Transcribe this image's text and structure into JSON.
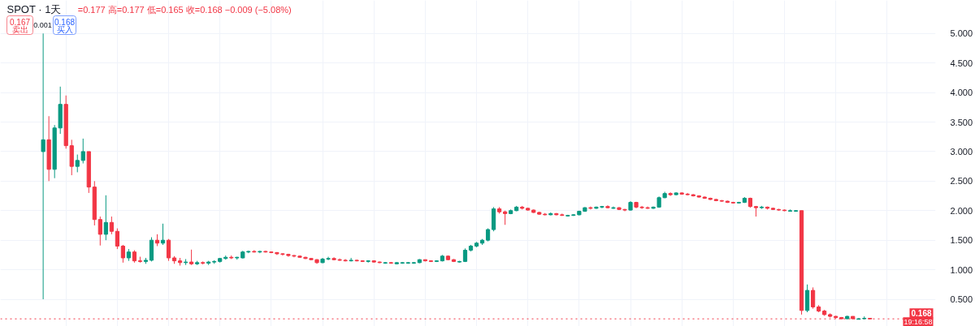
{
  "chart_data": {
    "type": "candlestick",
    "title": "SPOT · 1天",
    "subtitle": "=0.177 高=0.177 低=0.165 收=0.168 −0.009 (−5.08%)",
    "categories": [
      null,
      null,
      null,
      null,
      null,
      null,
      null,
      null,
      null,
      null,
      null,
      null,
      null,
      null,
      null,
      null,
      null,
      null,
      null,
      null,
      null,
      null,
      null,
      null,
      null,
      null,
      null,
      null,
      null,
      null,
      null,
      null,
      null,
      null,
      null,
      null,
      null,
      null,
      null,
      null,
      null,
      null,
      null,
      null,
      null,
      null,
      null,
      null,
      null,
      null,
      null,
      null,
      null,
      null,
      null,
      null,
      null,
      null,
      null,
      null,
      null,
      null,
      null,
      null,
      null,
      null,
      null,
      null,
      null,
      null,
      null,
      null,
      null,
      null,
      null,
      null,
      null,
      null,
      null,
      null,
      null,
      null,
      null,
      null,
      null,
      null,
      null,
      null,
      null,
      null,
      null,
      null,
      null,
      null,
      null,
      null,
      null,
      null,
      null,
      null,
      null,
      null,
      null,
      null,
      null,
      null,
      null,
      null,
      null,
      null,
      null,
      null,
      null,
      null,
      null,
      null,
      null,
      null,
      null,
      null,
      null,
      null,
      null,
      null,
      null,
      null,
      null,
      null,
      null,
      null,
      null,
      null,
      null,
      null,
      null,
      null,
      null,
      null,
      null,
      null,
      null,
      null,
      null,
      null,
      null,
      null,
      null,
      null,
      null,
      null,
      null,
      null,
      null,
      null,
      null,
      null,
      null,
      null,
      null,
      null,
      null,
      null,
      null,
      null
    ],
    "ohlc": [
      null,
      null,
      null,
      null,
      null,
      null,
      null,
      [
        3.0,
        5.0,
        0.5,
        3.2
      ],
      [
        3.2,
        3.6,
        2.5,
        2.7
      ],
      [
        2.7,
        3.45,
        2.55,
        3.4
      ],
      [
        3.4,
        4.1,
        3.3,
        3.8
      ],
      [
        3.8,
        3.95,
        3.05,
        3.1
      ],
      [
        3.1,
        3.2,
        2.6,
        2.75
      ],
      [
        2.75,
        2.95,
        2.65,
        2.85
      ],
      [
        2.85,
        3.22,
        2.8,
        3.0
      ],
      [
        3.0,
        3.0,
        2.3,
        2.4
      ],
      [
        2.4,
        2.5,
        1.75,
        1.85
      ],
      [
        1.85,
        1.9,
        1.41,
        1.6
      ],
      [
        1.6,
        2.26,
        1.5,
        1.8
      ],
      [
        1.8,
        1.9,
        1.6,
        1.65
      ],
      [
        1.65,
        1.7,
        1.35,
        1.4
      ],
      [
        1.4,
        1.42,
        1.12,
        1.2
      ],
      [
        1.2,
        1.35,
        1.15,
        1.3
      ],
      [
        1.3,
        1.33,
        1.12,
        1.15
      ],
      [
        1.15,
        1.22,
        1.12,
        1.14
      ],
      [
        1.14,
        1.2,
        1.1,
        1.16
      ],
      [
        1.16,
        1.55,
        1.14,
        1.5
      ],
      [
        1.5,
        1.6,
        1.4,
        1.45
      ],
      [
        1.45,
        1.78,
        1.42,
        1.5
      ],
      [
        1.5,
        1.52,
        1.15,
        1.2
      ],
      [
        1.2,
        1.23,
        1.1,
        1.15
      ],
      [
        1.15,
        1.2,
        1.07,
        1.12
      ],
      [
        1.12,
        1.18,
        1.08,
        1.13
      ],
      [
        1.13,
        1.34,
        1.08,
        1.1
      ],
      [
        1.1,
        1.15,
        1.08,
        1.12
      ],
      [
        1.12,
        1.14,
        1.09,
        1.11
      ],
      [
        1.11,
        1.15,
        1.08,
        1.13
      ],
      [
        1.13,
        1.16,
        1.1,
        1.14
      ],
      [
        1.14,
        1.2,
        1.12,
        1.19
      ],
      [
        1.19,
        1.24,
        1.17,
        1.21
      ],
      [
        1.21,
        1.24,
        1.18,
        1.2
      ],
      [
        1.2,
        1.22,
        1.17,
        1.21
      ],
      [
        1.2,
        1.32,
        1.19,
        1.3
      ],
      [
        1.3,
        1.32,
        1.28,
        1.31
      ],
      [
        1.31,
        1.33,
        1.29,
        1.3
      ],
      [
        1.3,
        1.32,
        1.28,
        1.31
      ],
      [
        1.31,
        1.32,
        1.29,
        1.3
      ],
      [
        1.3,
        1.31,
        1.28,
        1.29
      ],
      [
        1.29,
        1.3,
        1.25,
        1.27
      ],
      [
        1.27,
        1.28,
        1.24,
        1.26
      ],
      [
        1.26,
        1.27,
        1.22,
        1.24
      ],
      [
        1.24,
        1.25,
        1.21,
        1.23
      ],
      [
        1.23,
        1.24,
        1.2,
        1.21
      ],
      [
        1.21,
        1.22,
        1.18,
        1.19
      ],
      [
        1.19,
        1.2,
        1.16,
        1.17
      ],
      [
        1.17,
        1.18,
        1.1,
        1.12
      ],
      [
        1.12,
        1.2,
        1.11,
        1.18
      ],
      [
        1.18,
        1.22,
        1.16,
        1.19
      ],
      [
        1.19,
        1.21,
        1.16,
        1.17
      ],
      [
        1.17,
        1.19,
        1.15,
        1.16
      ],
      [
        1.16,
        1.18,
        1.14,
        1.15
      ],
      [
        1.15,
        1.2,
        1.14,
        1.16
      ],
      [
        1.16,
        1.17,
        1.14,
        1.15
      ],
      [
        1.15,
        1.16,
        1.13,
        1.14
      ],
      [
        1.14,
        1.16,
        1.12,
        1.15
      ],
      [
        1.15,
        1.16,
        1.12,
        1.13
      ],
      [
        1.13,
        1.14,
        1.11,
        1.12
      ],
      [
        1.11,
        1.13,
        1.1,
        1.12
      ],
      [
        1.12,
        1.13,
        1.1,
        1.11
      ],
      [
        1.1,
        1.13,
        1.09,
        1.12
      ],
      [
        1.11,
        1.13,
        1.1,
        1.12
      ],
      [
        1.11,
        1.13,
        1.1,
        1.12
      ],
      [
        1.11,
        1.13,
        1.1,
        1.12
      ],
      [
        1.12,
        1.18,
        1.11,
        1.17
      ],
      [
        1.17,
        1.17,
        1.14,
        1.15
      ],
      [
        1.15,
        1.16,
        1.13,
        1.14
      ],
      [
        1.14,
        1.16,
        1.13,
        1.15
      ],
      [
        1.15,
        1.25,
        1.14,
        1.23
      ],
      [
        1.23,
        1.24,
        1.16,
        1.17
      ],
      [
        1.17,
        1.18,
        1.13,
        1.14
      ],
      [
        1.13,
        1.15,
        1.12,
        1.14
      ],
      [
        1.14,
        1.36,
        1.13,
        1.33
      ],
      [
        1.33,
        1.42,
        1.31,
        1.4
      ],
      [
        1.4,
        1.47,
        1.38,
        1.45
      ],
      [
        1.45,
        1.52,
        1.42,
        1.5
      ],
      [
        1.5,
        1.7,
        1.48,
        1.68
      ],
      [
        1.68,
        2.06,
        1.65,
        2.03
      ],
      [
        2.03,
        2.06,
        1.95,
        1.98
      ],
      [
        1.98,
        2.0,
        1.76,
        1.95
      ],
      [
        1.95,
        2.02,
        1.94,
        2.0
      ],
      [
        2.0,
        2.08,
        1.99,
        2.06
      ],
      [
        2.06,
        2.08,
        2.02,
        2.04
      ],
      [
        2.04,
        2.05,
        2.0,
        2.01
      ],
      [
        2.01,
        2.02,
        1.96,
        1.97
      ],
      [
        1.97,
        1.98,
        1.93,
        1.94
      ],
      [
        1.94,
        1.96,
        1.92,
        1.93
      ],
      [
        1.93,
        1.97,
        1.92,
        1.95
      ],
      [
        1.95,
        1.96,
        1.92,
        1.93
      ],
      [
        1.93,
        1.95,
        1.91,
        1.92
      ],
      [
        1.91,
        1.93,
        1.9,
        1.92
      ],
      [
        1.92,
        1.94,
        1.91,
        1.93
      ],
      [
        1.93,
        2.0,
        1.92,
        1.99
      ],
      [
        1.99,
        2.06,
        1.98,
        2.05
      ],
      [
        2.05,
        2.07,
        2.02,
        2.04
      ],
      [
        2.04,
        2.07,
        2.03,
        2.06
      ],
      [
        2.06,
        2.08,
        2.04,
        2.07
      ],
      [
        2.07,
        2.09,
        2.04,
        2.05
      ],
      [
        2.04,
        2.07,
        2.03,
        2.05
      ],
      [
        2.05,
        2.06,
        2.01,
        2.02
      ],
      [
        2.02,
        2.03,
        1.99,
        2.01
      ],
      [
        2.01,
        2.16,
        2.0,
        2.14
      ],
      [
        2.14,
        2.15,
        2.04,
        2.06
      ],
      [
        2.06,
        2.08,
        2.03,
        2.05
      ],
      [
        2.05,
        2.07,
        2.03,
        2.04
      ],
      [
        2.04,
        2.07,
        2.03,
        2.06
      ],
      [
        2.06,
        2.24,
        2.05,
        2.22
      ],
      [
        2.22,
        2.32,
        2.21,
        2.29
      ],
      [
        2.29,
        2.31,
        2.25,
        2.27
      ],
      [
        2.27,
        2.31,
        2.26,
        2.3
      ],
      [
        2.3,
        2.31,
        2.27,
        2.28
      ],
      [
        2.28,
        2.3,
        2.26,
        2.27
      ],
      [
        2.27,
        2.28,
        2.24,
        2.25
      ],
      [
        2.25,
        2.26,
        2.22,
        2.23
      ],
      [
        2.23,
        2.24,
        2.2,
        2.21
      ],
      [
        2.21,
        2.22,
        2.18,
        2.19
      ],
      [
        2.19,
        2.2,
        2.16,
        2.17
      ],
      [
        2.17,
        2.18,
        2.15,
        2.16
      ],
      [
        2.16,
        2.17,
        2.13,
        2.14
      ],
      [
        2.14,
        2.15,
        2.12,
        2.13
      ],
      [
        2.13,
        2.15,
        2.12,
        2.14
      ],
      [
        2.14,
        2.23,
        2.13,
        2.21
      ],
      [
        2.21,
        2.22,
        2.05,
        2.07
      ],
      [
        2.07,
        2.08,
        1.9,
        2.05
      ],
      [
        2.05,
        2.08,
        2.03,
        2.06
      ],
      [
        2.06,
        2.07,
        2.02,
        2.04
      ],
      [
        2.04,
        2.05,
        2.01,
        2.02
      ],
      [
        2.02,
        2.03,
        2.0,
        2.01
      ],
      [
        2.01,
        2.02,
        1.99,
        2.0
      ],
      [
        1.99,
        2.02,
        1.99,
        2.0
      ],
      [
        1.99,
        2.01,
        1.98,
        2.0
      ],
      [
        2.0,
        2.0,
        0.24,
        0.31
      ],
      [
        0.31,
        0.75,
        0.28,
        0.65
      ],
      [
        0.65,
        0.7,
        0.34,
        0.37
      ],
      [
        0.37,
        0.4,
        0.28,
        0.3
      ],
      [
        0.3,
        0.32,
        0.22,
        0.24
      ],
      [
        0.24,
        0.26,
        0.19,
        0.21
      ],
      [
        0.21,
        0.22,
        0.17,
        0.19
      ],
      [
        0.19,
        0.2,
        0.16,
        0.17
      ],
      [
        0.17,
        0.22,
        0.16,
        0.21
      ],
      [
        0.21,
        0.21,
        0.16,
        0.17
      ],
      [
        0.16,
        0.18,
        0.16,
        0.17
      ],
      [
        0.17,
        0.21,
        0.165,
        0.177
      ],
      [
        0.177,
        0.177,
        0.165,
        0.168
      ],
      null,
      null,
      null,
      null,
      null,
      null,
      null,
      null,
      null,
      null,
      null
    ],
    "colors": [
      null,
      null,
      null,
      null,
      null,
      null,
      null,
      "#089981",
      "#f23645",
      "#089981",
      "#089981",
      "#f23645",
      "#f23645",
      "#089981",
      "#089981",
      "#f23645",
      "#f23645",
      "#f23645",
      "#089981",
      "#f23645",
      "#f23645",
      "#f23645",
      "#089981",
      "#f23645",
      "#f23645",
      "#089981",
      "#089981",
      "#f23645",
      "#089981",
      "#f23645",
      "#f23645",
      "#f23645",
      "#089981",
      "#f23645",
      "#089981",
      "#f23645",
      "#089981",
      "#089981",
      "#089981",
      "#089981",
      "#f23645",
      "#089981",
      "#089981",
      "#089981",
      "#f23645",
      "#089981",
      "#f23645",
      "#f23645",
      "#f23645",
      "#f23645",
      "#f23645",
      "#f23645",
      "#f23645",
      "#f23645",
      "#f23645",
      "#f23645",
      "#089981",
      "#089981",
      "#f23645",
      "#f23645",
      "#f23645",
      "#089981",
      "#f23645",
      "#f23645",
      "#089981",
      "#f23645",
      "#f23645",
      "#089981",
      "#f23645",
      "#089981",
      "#089981",
      "#089981",
      "#089981",
      "#089981",
      "#f23645",
      "#f23645",
      "#089981",
      "#089981",
      "#f23645",
      "#f23645",
      "#089981",
      "#089981",
      "#089981",
      "#089981",
      "#089981",
      "#089981",
      "#089981",
      "#f23645",
      "#f23645",
      "#089981",
      "#089981",
      "#f23645",
      "#f23645",
      "#f23645",
      "#f23645",
      "#f23645",
      "#089981",
      "#f23645",
      "#f23645",
      "#089981",
      "#089981",
      "#089981",
      "#089981",
      "#f23645",
      "#089981",
      "#089981",
      "#f23645",
      "#089981",
      "#f23645",
      "#f23645",
      "#089981",
      "#f23645",
      "#f23645",
      "#f23645",
      "#089981",
      "#089981",
      "#089981",
      "#f23645",
      "#089981",
      "#f23645",
      "#f23645",
      "#f23645",
      "#f23645",
      "#f23645",
      "#f23645",
      "#f23645",
      "#f23645",
      "#f23645",
      "#f23645",
      "#089981",
      "#089981",
      "#f23645",
      "#f23645",
      "#089981",
      "#f23645",
      "#f23645",
      "#f23645",
      "#f23645",
      "#089981",
      "#089981",
      "#f23645",
      "#089981",
      "#f23645",
      "#f23645",
      "#f23645",
      "#f23645",
      "#f23645",
      "#f23645",
      "#089981",
      "#f23645",
      "#089981",
      "#089981",
      "#f23645",
      null,
      null,
      null,
      null,
      null,
      null,
      null,
      null,
      null,
      null,
      null
    ],
    "ylim": [
      0.04,
      5.56
    ],
    "yticks": [
      {
        "value": 0.5,
        "label": "0.500"
      },
      {
        "value": 1.0,
        "label": "1.000"
      },
      {
        "value": 1.5,
        "label": "1.500"
      },
      {
        "value": 2.0,
        "label": "2.000"
      },
      {
        "value": 2.5,
        "label": "2.500"
      },
      {
        "value": 3.0,
        "label": "3.000"
      },
      {
        "value": 3.5,
        "label": "3.500"
      },
      {
        "value": 4.0,
        "label": "4.000"
      },
      {
        "value": 4.5,
        "label": "4.500"
      },
      {
        "value": 5.0,
        "label": "5.000"
      }
    ],
    "grid": true,
    "tick_labels": "y",
    "ref_lines": [
      {
        "axis": "y",
        "value": 0.168,
        "label": "0.168",
        "color": "#f23645",
        "line_style": "dotted"
      }
    ],
    "annotations": [
      "0.167",
      "卖出",
      "0.001",
      "0.168",
      "买入",
      "19:16:58"
    ]
  }
}
